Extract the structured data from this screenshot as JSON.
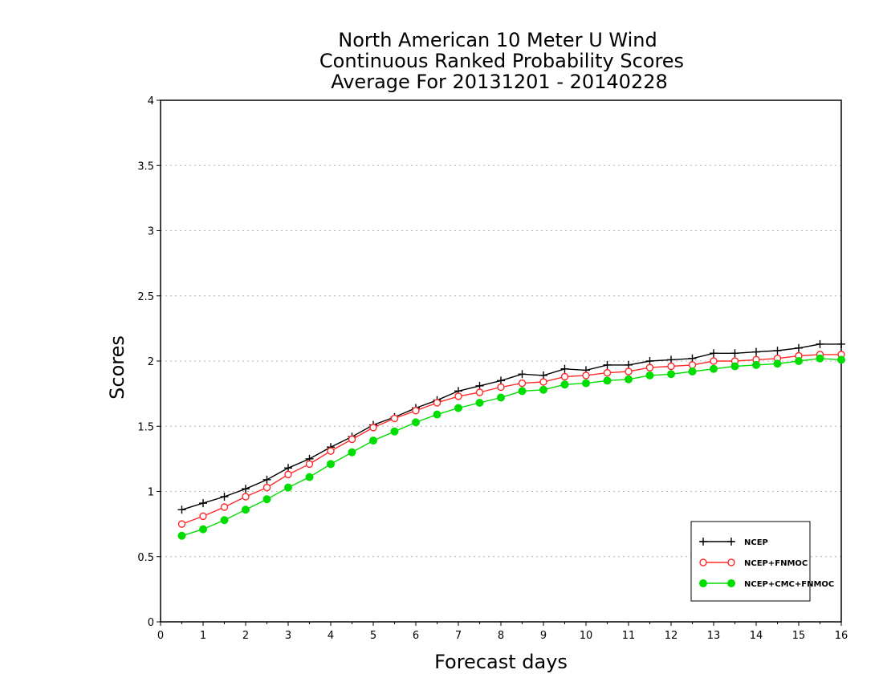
{
  "chart_data": {
    "type": "line",
    "title_lines": [
      "North American 10 Meter U Wind",
      "Continuous Ranked Probability Scores",
      "Average For 20131201 - 20140228"
    ],
    "xlabel": "Forecast days",
    "ylabel": "Scores",
    "xlim": [
      0,
      16
    ],
    "ylim": [
      0,
      4
    ],
    "xticks": [
      0,
      1,
      2,
      3,
      4,
      5,
      6,
      7,
      8,
      9,
      10,
      11,
      12,
      13,
      14,
      15,
      16
    ],
    "yticks": [
      0,
      0.5,
      1,
      1.5,
      2,
      2.5,
      3,
      3.5,
      4
    ],
    "ytick_labels": [
      "0",
      "0.5",
      "1",
      "1.5",
      "2",
      "2.5",
      "3",
      "3.5",
      "4"
    ],
    "grid": "horizontal dotted",
    "legend_position": "bottom-right",
    "x": [
      0.5,
      1,
      1.5,
      2,
      2.5,
      3,
      3.5,
      4,
      4.5,
      5,
      5.5,
      6,
      6.5,
      7,
      7.5,
      8,
      8.5,
      9,
      9.5,
      10,
      10.5,
      11,
      11.5,
      12,
      12.5,
      13,
      13.5,
      14,
      14.5,
      15,
      15.5,
      16
    ],
    "series": [
      {
        "name": "NCEP",
        "color": "#000000",
        "marker": "plus",
        "values": [
          0.86,
          0.91,
          0.96,
          1.02,
          1.09,
          1.18,
          1.25,
          1.34,
          1.42,
          1.51,
          1.57,
          1.64,
          1.7,
          1.77,
          1.81,
          1.85,
          1.9,
          1.89,
          1.94,
          1.93,
          1.97,
          1.97,
          2.0,
          2.01,
          2.02,
          2.06,
          2.06,
          2.07,
          2.08,
          2.1,
          2.13,
          2.13
        ]
      },
      {
        "name": "NCEP+FNMOC",
        "color": "#ff2a2a",
        "marker": "open-circle",
        "values": [
          0.75,
          0.81,
          0.88,
          0.96,
          1.03,
          1.13,
          1.21,
          1.31,
          1.4,
          1.49,
          1.56,
          1.62,
          1.68,
          1.73,
          1.76,
          1.8,
          1.83,
          1.84,
          1.88,
          1.89,
          1.91,
          1.92,
          1.95,
          1.96,
          1.97,
          2.0,
          2.0,
          2.01,
          2.02,
          2.04,
          2.05,
          2.05
        ]
      },
      {
        "name": "NCEP+CMC+FNMOC",
        "color": "#00dd00",
        "marker": "filled-circle",
        "values": [
          0.66,
          0.71,
          0.78,
          0.86,
          0.94,
          1.03,
          1.11,
          1.21,
          1.3,
          1.39,
          1.46,
          1.53,
          1.59,
          1.64,
          1.68,
          1.72,
          1.77,
          1.78,
          1.82,
          1.83,
          1.85,
          1.86,
          1.89,
          1.9,
          1.92,
          1.94,
          1.96,
          1.97,
          1.98,
          2.0,
          2.02,
          2.01
        ]
      }
    ]
  }
}
